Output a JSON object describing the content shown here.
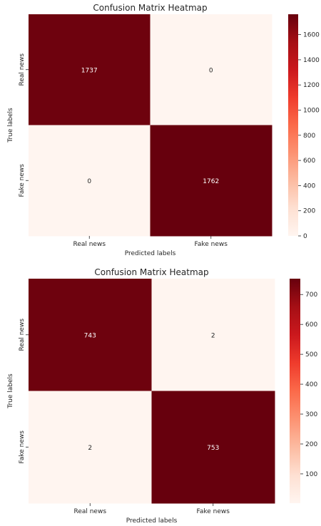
{
  "chart_data": [
    {
      "type": "heatmap",
      "title": "Confusion Matrix Heatmap",
      "xlabel": "Predicted labels",
      "ylabel": "True labels",
      "x_categories": [
        "Real news",
        "Fake news"
      ],
      "y_categories": [
        "Real news",
        "Fake news"
      ],
      "values": [
        [
          1737,
          0
        ],
        [
          0,
          1762
        ]
      ],
      "colormap": "Reds",
      "colorbar": {
        "min": 0,
        "max": 1762,
        "ticks": [
          0,
          200,
          400,
          600,
          800,
          1000,
          1200,
          1400,
          1600
        ]
      }
    },
    {
      "type": "heatmap",
      "title": "Confusion Matrix Heatmap",
      "xlabel": "Predicted labels",
      "ylabel": "True labels",
      "x_categories": [
        "Real news",
        "Fake news"
      ],
      "y_categories": [
        "Real news",
        "Fake news"
      ],
      "values": [
        [
          743,
          2
        ],
        [
          2,
          753
        ]
      ],
      "colormap": "Reds",
      "colorbar": {
        "min": 2,
        "max": 753,
        "ticks": [
          100,
          200,
          300,
          400,
          500,
          600,
          700
        ]
      }
    }
  ]
}
